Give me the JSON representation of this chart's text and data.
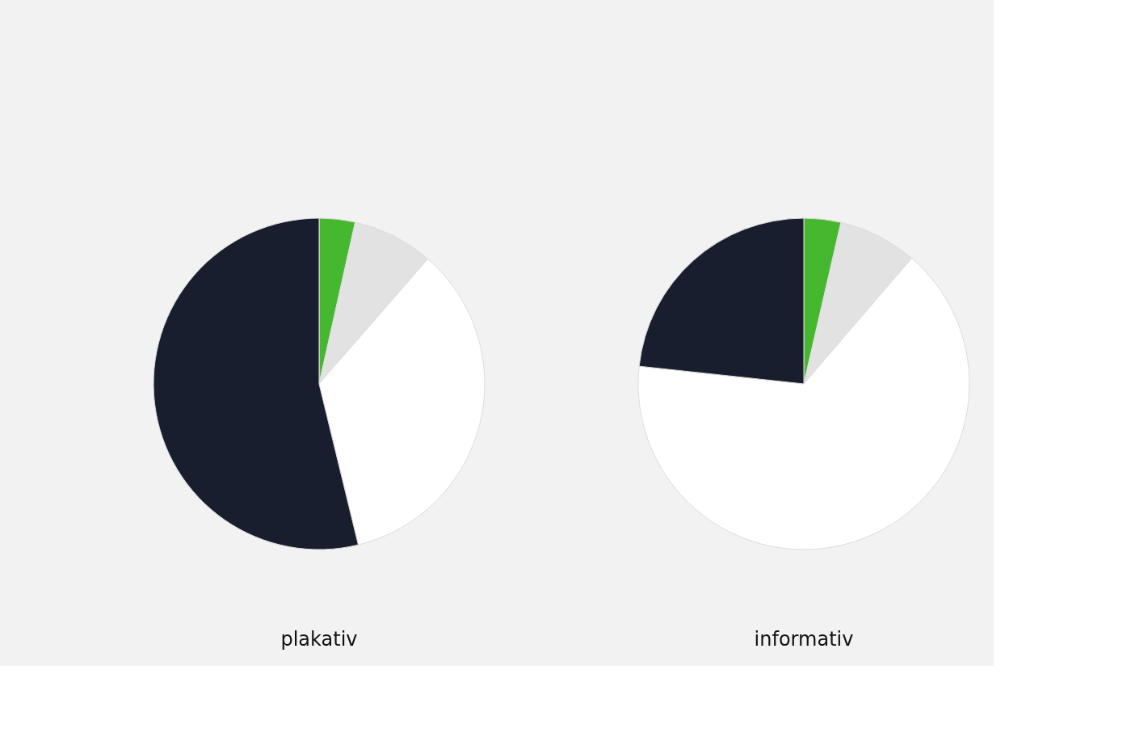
{
  "chart_data": [
    {
      "type": "pie",
      "title": "plakativ",
      "categories": [
        null,
        null,
        null,
        null
      ],
      "values": [
        3.5,
        7.9,
        34.8,
        53.8
      ],
      "colors": [
        "#46b82f",
        "#e2e2e2",
        "#ffffff",
        "#181e2d"
      ],
      "legend": false
    },
    {
      "type": "pie",
      "title": "informativ",
      "categories": [
        null,
        null,
        null,
        null
      ],
      "values": [
        3.6,
        7.7,
        65.4,
        23.3
      ],
      "colors": [
        "#46b82f",
        "#e2e2e2",
        "#ffffff",
        "#181e2d"
      ],
      "legend": false
    }
  ]
}
